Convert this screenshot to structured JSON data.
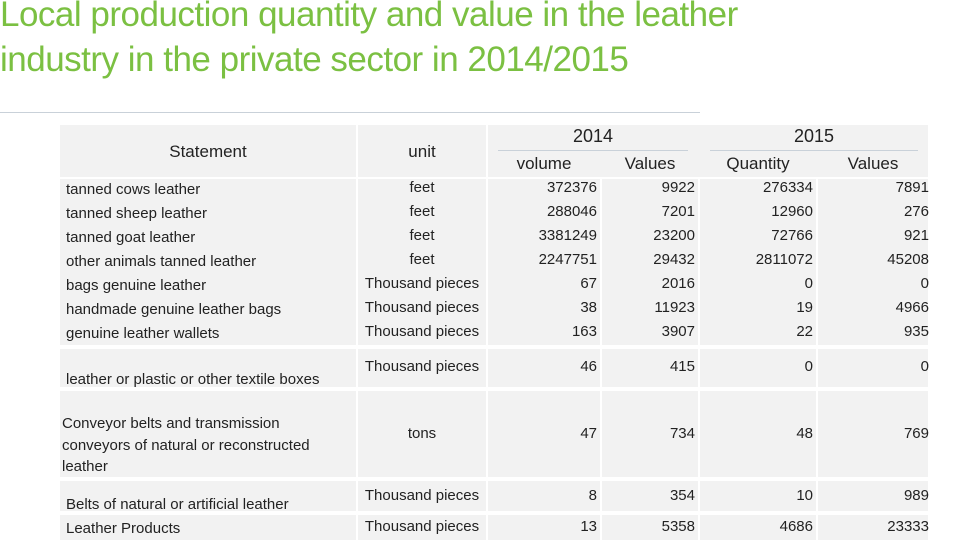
{
  "title": "Local production quantity and value in the leather industry in the private sector in 2014/2015",
  "headers": {
    "statement": "Statement",
    "unit": "unit",
    "year_2014": "2014",
    "year_2015": "2015",
    "volume_2014": "volume",
    "values_2014": "Values",
    "quantity_2015": "Quantity",
    "values_2015": "Values"
  },
  "rows": [
    {
      "statement": "tanned cows leather",
      "unit": "feet",
      "v2014": "372376",
      "val2014": "9922",
      "q2015": "276334",
      "val2015": "7891"
    },
    {
      "statement": "tanned sheep leather",
      "unit": "feet",
      "v2014": "288046",
      "val2014": "7201",
      "q2015": "12960",
      "val2015": "276"
    },
    {
      "statement": "tanned goat leather",
      "unit": "feet",
      "v2014": "3381249",
      "val2014": "23200",
      "q2015": "72766",
      "val2015": "921"
    },
    {
      "statement": "other animals tanned leather",
      "unit": "feet",
      "v2014": "2247751",
      "val2014": "29432",
      "q2015": "2811072",
      "val2015": "45208"
    },
    {
      "statement": "bags genuine leather",
      "unit": "Thousand pieces",
      "v2014": "67",
      "val2014": "2016",
      "q2015": "0",
      "val2015": "0"
    },
    {
      "statement": "handmade genuine leather bags",
      "unit": "Thousand pieces",
      "v2014": "38",
      "val2014": "11923",
      "q2015": "19",
      "val2015": "4966"
    },
    {
      "statement": "genuine leather wallets",
      "unit": "Thousand pieces",
      "v2014": "163",
      "val2014": "3907",
      "q2015": "22",
      "val2015": "935"
    },
    {
      "statement": "leather or plastic or other textile boxes",
      "unit": "Thousand pieces",
      "v2014": "46",
      "val2014": "415",
      "q2015": "0",
      "val2015": "0"
    },
    {
      "statement": "Conveyor belts and transmission conveyors of natural or reconstructed leather",
      "unit": "tons",
      "v2014": "47",
      "val2014": "734",
      "q2015": "48",
      "val2015": "769"
    },
    {
      "statement": "Belts of natural or artificial leather",
      "unit": "Thousand pieces",
      "v2014": "8",
      "val2014": "354",
      "q2015": "10",
      "val2015": "989"
    },
    {
      "statement": "Leather Products",
      "unit": "Thousand pieces",
      "v2014": "13",
      "val2014": "5358",
      "q2015": "4686",
      "val2015": "23333"
    }
  ]
}
